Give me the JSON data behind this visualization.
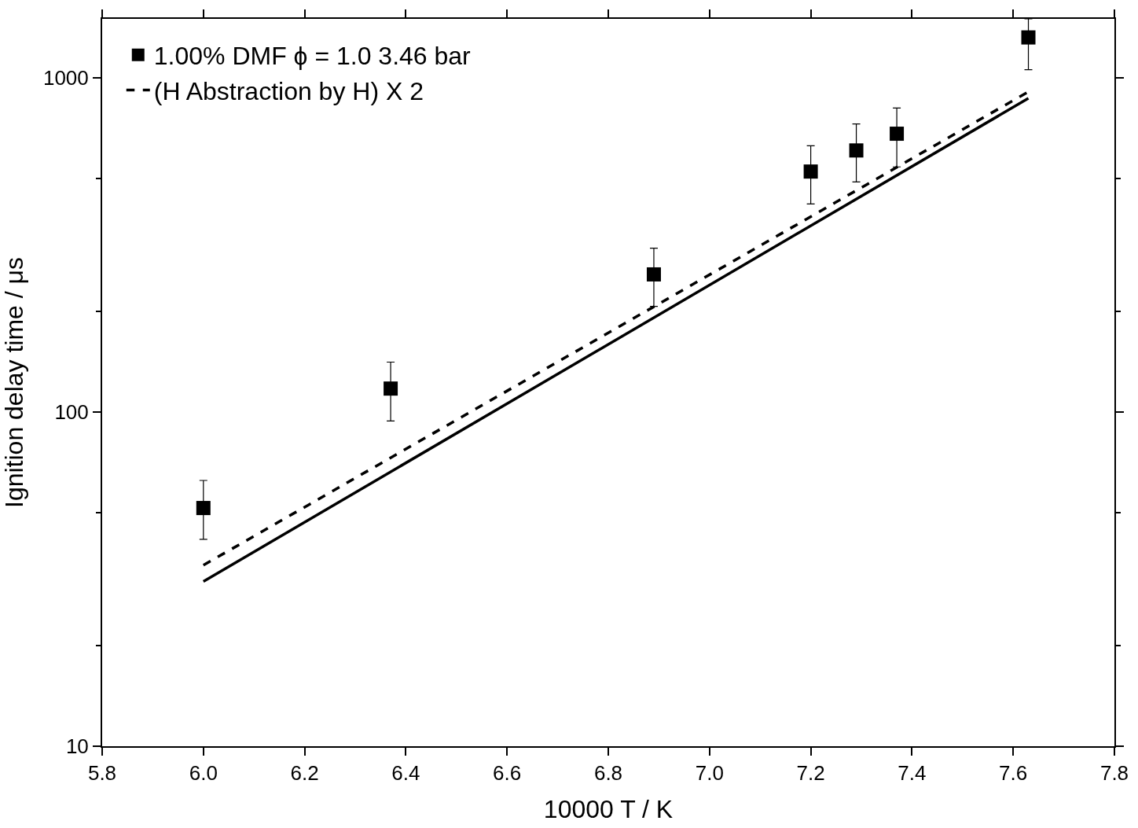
{
  "chart_data": {
    "type": "scatter",
    "xlabel": "10000 T / K",
    "ylabel": "Ignition delay time / μs",
    "log": "y",
    "grid": false,
    "legend": "top left",
    "xlim": [
      5.8,
      7.8
    ],
    "xticks": [
      {
        "value": 5.8,
        "label": "5.8"
      },
      {
        "value": 6.0,
        "label": "6.0"
      },
      {
        "value": 6.2,
        "label": "6.2"
      },
      {
        "value": 6.4,
        "label": "6.4"
      },
      {
        "value": 6.6,
        "label": "6.6"
      },
      {
        "value": 6.8,
        "label": "6.8"
      },
      {
        "value": 7.0,
        "label": "7.0"
      },
      {
        "value": 7.2,
        "label": "7.2"
      },
      {
        "value": 7.4,
        "label": "7.4"
      },
      {
        "value": 7.6,
        "label": "7.6"
      },
      {
        "value": 7.8,
        "label": "7.8"
      }
    ],
    "ylim": [
      10,
      1500
    ],
    "yticks": [
      10,
      100,
      1000
    ],
    "series": [
      {
        "type": "scatter",
        "name": "1.00% DMF ϕ = 1.0 3.46 bar",
        "color": "#000000",
        "marker": "square",
        "x": [
          6.0,
          6.37,
          6.89,
          7.2,
          7.29,
          7.37,
          7.63
        ],
        "values": [
          51.6,
          117.5,
          258,
          524,
          606,
          680,
          1320
        ],
        "errors": [
          [
            41.6,
            62.4
          ],
          [
            94,
            141
          ],
          [
            207,
            309
          ],
          [
            419,
            626
          ],
          [
            488,
            727
          ],
          [
            541,
            812
          ],
          [
            1057,
            1500
          ]
        ]
      },
      {
        "type": "line",
        "color": "#000000",
        "line_style": "solid",
        "x": [
          6.0,
          7.63
        ],
        "values": [
          31.1,
          868
        ]
      },
      {
        "type": "line",
        "name": "(H Abstraction by H) X 2",
        "color": "#000000",
        "line_style": "dashed",
        "x": [
          6.0,
          7.63
        ],
        "values": [
          34.8,
          908
        ]
      }
    ]
  }
}
